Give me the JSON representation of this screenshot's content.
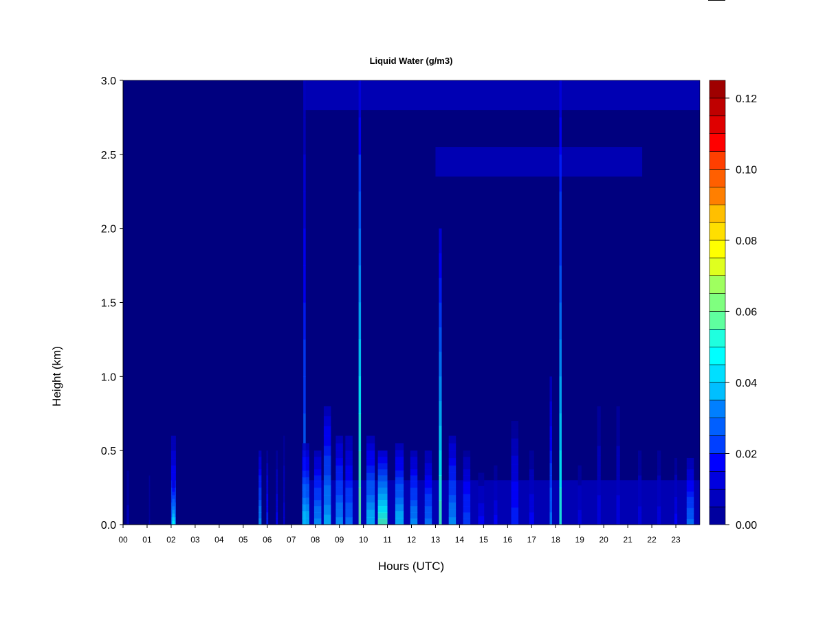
{
  "chart_data": {
    "type": "heatmap",
    "title": "Liquid Water (g/m3)",
    "xlabel": "Hours (UTC)",
    "ylabel": "Height (km)",
    "xlim": [
      0,
      24
    ],
    "ylim": [
      0.0,
      3.0
    ],
    "x_ticks": [
      "00",
      "01",
      "02",
      "03",
      "04",
      "05",
      "06",
      "07",
      "08",
      "09",
      "10",
      "11",
      "12",
      "13",
      "14",
      "15",
      "16",
      "17",
      "18",
      "19",
      "20",
      "21",
      "22",
      "23"
    ],
    "y_ticks": [
      "0.0",
      "0.5",
      "1.0",
      "1.5",
      "2.0",
      "2.5",
      "3.0"
    ],
    "colorbar": {
      "min": 0.0,
      "max": 0.125,
      "levels": 25,
      "tick_labels": [
        "0.00",
        "0.02",
        "0.04",
        "0.06",
        "0.08",
        "0.10",
        "0.12"
      ],
      "tick_values": [
        0.0,
        0.02,
        0.04,
        0.06,
        0.08,
        0.1,
        0.12
      ],
      "colors": [
        "#00007f",
        "#00009f",
        "#0000bf",
        "#0000df",
        "#0000ff",
        "#001fff",
        "#003fff",
        "#005fff",
        "#007fff",
        "#009fff",
        "#00bfff",
        "#00dfff",
        "#00ffff",
        "#1fffdf",
        "#3fffbf",
        "#5fff9f",
        "#7fff7f",
        "#9fff5f",
        "#bfff3f",
        "#dfff1f",
        "#ffff00",
        "#ffdf00",
        "#ffbf00",
        "#ff9f00",
        "#ff7f00",
        "#ff5f00",
        "#ff3f00",
        "#ff1f00",
        "#ff0000",
        "#df0000",
        "#bf0000",
        "#9f0000",
        "#7f0000"
      ]
    },
    "events": [
      {
        "t": 0.2,
        "w": 0.1,
        "h": 0.4,
        "v": 0.008
      },
      {
        "t": 1.1,
        "w": 0.05,
        "h": 0.4,
        "v": 0.006
      },
      {
        "t": 2.1,
        "w": 0.2,
        "h": 0.6,
        "v": 0.03
      },
      {
        "t": 2.1,
        "w": 0.12,
        "h": 0.3,
        "v": 0.045
      },
      {
        "t": 5.7,
        "w": 0.12,
        "h": 0.5,
        "v": 0.035
      },
      {
        "t": 6.0,
        "w": 0.08,
        "h": 0.5,
        "v": 0.02
      },
      {
        "t": 6.4,
        "w": 0.08,
        "h": 0.5,
        "v": 0.015
      },
      {
        "t": 6.7,
        "w": 0.06,
        "h": 0.6,
        "v": 0.012
      },
      {
        "t": 7.55,
        "w": 0.1,
        "h": 3.0,
        "v": 0.03
      },
      {
        "t": 7.6,
        "w": 0.3,
        "h": 0.55,
        "v": 0.04
      },
      {
        "t": 8.1,
        "w": 0.3,
        "h": 0.5,
        "v": 0.035
      },
      {
        "t": 8.5,
        "w": 0.3,
        "h": 0.8,
        "v": 0.038
      },
      {
        "t": 9.0,
        "w": 0.3,
        "h": 0.6,
        "v": 0.035
      },
      {
        "t": 9.4,
        "w": 0.3,
        "h": 0.6,
        "v": 0.03
      },
      {
        "t": 9.85,
        "w": 0.1,
        "h": 3.0,
        "v": 0.06
      },
      {
        "t": 10.3,
        "w": 0.35,
        "h": 0.6,
        "v": 0.04
      },
      {
        "t": 10.8,
        "w": 0.4,
        "h": 0.5,
        "v": 0.055
      },
      {
        "t": 11.5,
        "w": 0.35,
        "h": 0.55,
        "v": 0.04
      },
      {
        "t": 12.1,
        "w": 0.3,
        "h": 0.5,
        "v": 0.035
      },
      {
        "t": 12.7,
        "w": 0.3,
        "h": 0.5,
        "v": 0.03
      },
      {
        "t": 13.2,
        "w": 0.12,
        "h": 2.0,
        "v": 0.055
      },
      {
        "t": 13.7,
        "w": 0.3,
        "h": 0.6,
        "v": 0.035
      },
      {
        "t": 14.3,
        "w": 0.3,
        "h": 0.5,
        "v": 0.025
      },
      {
        "t": 14.9,
        "w": 0.25,
        "h": 0.35,
        "v": 0.015
      },
      {
        "t": 15.5,
        "w": 0.15,
        "h": 0.4,
        "v": 0.015
      },
      {
        "t": 16.3,
        "w": 0.3,
        "h": 0.7,
        "v": 0.02
      },
      {
        "t": 17.0,
        "w": 0.2,
        "h": 0.5,
        "v": 0.015
      },
      {
        "t": 17.8,
        "w": 0.1,
        "h": 1.0,
        "v": 0.03
      },
      {
        "t": 18.2,
        "w": 0.1,
        "h": 3.0,
        "v": 0.05
      },
      {
        "t": 19.0,
        "w": 0.15,
        "h": 0.4,
        "v": 0.012
      },
      {
        "t": 19.8,
        "w": 0.15,
        "h": 0.8,
        "v": 0.012
      },
      {
        "t": 20.6,
        "w": 0.15,
        "h": 0.8,
        "v": 0.012
      },
      {
        "t": 21.5,
        "w": 0.15,
        "h": 0.5,
        "v": 0.012
      },
      {
        "t": 22.3,
        "w": 0.15,
        "h": 0.5,
        "v": 0.012
      },
      {
        "t": 23.0,
        "w": 0.12,
        "h": 0.45,
        "v": 0.015
      },
      {
        "t": 23.6,
        "w": 0.3,
        "h": 0.45,
        "v": 0.03
      }
    ],
    "layers": [
      {
        "t0": 7.5,
        "t1": 24.0,
        "y0": 2.8,
        "y1": 3.0,
        "v": 0.012
      },
      {
        "t0": 13.0,
        "t1": 21.6,
        "y0": 2.35,
        "y1": 2.55,
        "v": 0.012
      },
      {
        "t0": 7.5,
        "t1": 24.0,
        "y0": 0.0,
        "y1": 0.3,
        "v": 0.012
      }
    ]
  }
}
